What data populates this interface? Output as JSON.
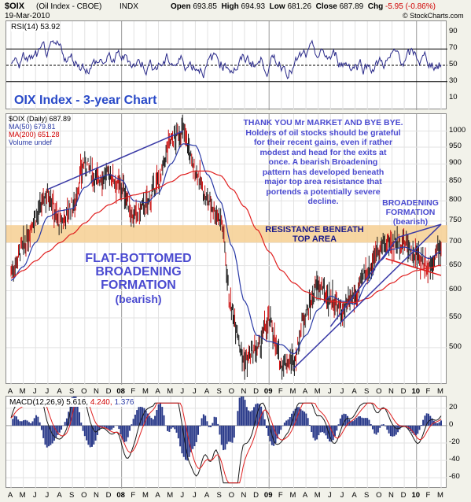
{
  "header": {
    "symbol": "$OIX",
    "name": "(Oil Index - CBOE)",
    "exchange": "INDX",
    "date": "19-Mar-2010",
    "open_label": "Open",
    "open": "693.85",
    "high_label": "High",
    "high": "694.93",
    "low_label": "Low",
    "low": "681.26",
    "close_label": "Close",
    "close": "687.89",
    "chg_label": "Chg",
    "chg": "-5.95 (-0.86%)",
    "watermark": "© StockCharts.com"
  },
  "rsi_panel": {
    "label": "RSI(14) 53.92",
    "ticks": [
      "90",
      "70",
      "50",
      "30",
      "10"
    ]
  },
  "price_panel": {
    "title": "OIX Index - 3-year Chart",
    "legend": [
      "$OIX (Daily) 687.89",
      "MA(50) 679.81",
      "MA(200) 651.28",
      "Volume undef"
    ],
    "ticks": [
      "1000",
      "950",
      "900",
      "850",
      "800",
      "750",
      "700",
      "650",
      "600",
      "550",
      "500"
    ]
  },
  "macd_panel": {
    "label_main": "MACD(12,26,9) 5.616,",
    "label_signal": "4.240,",
    "label_hist": "1.376",
    "ticks": [
      "20",
      "0",
      "-20",
      "-40",
      "-60"
    ]
  },
  "annotations": {
    "comment": "THANK YOU Mr MARKET AND BYE BYE.\nHolders of oil stocks should be grateful\nfor their recent gains, even if rather\nmodest and head for the exits at\nonce. A bearish Broadening\npattern has developed beneath\nmajor top area resistance that\nportends a potentially severe\ndecline.",
    "broadening_right": "BROADENING\nFORMATION\n(bearish)",
    "resistance": "RESISTANCE BENEATH\nTOP AREA",
    "flat_bottom": "FLAT-BOTTOMED\nBROADENING\nFORMATION",
    "flat_bottom_sub": "(bearish)"
  },
  "colors": {
    "price": "#000000",
    "ma50": "#2a3aa6",
    "ma200": "#e02020",
    "trendline": "#3a3aa6",
    "resistance_band": "#f6cf92",
    "annotation_text": "#4444cc",
    "bull_bar": "#1a1a1a",
    "bear_bar": "#cc1010"
  },
  "chart_data": {
    "type": "line",
    "title": "OIX Index - 3-year Chart",
    "x_labels": [
      "A",
      "M",
      "J",
      "J",
      "A",
      "S",
      "O",
      "N",
      "D",
      "08",
      "F",
      "M",
      "A",
      "M",
      "J",
      "J",
      "A",
      "S",
      "O",
      "N",
      "D",
      "09",
      "F",
      "M",
      "A",
      "M",
      "J",
      "J",
      "A",
      "S",
      "O",
      "N",
      "D",
      "10",
      "F",
      "M"
    ],
    "price": {
      "ylim": [
        460,
        1040
      ],
      "log_scale": true,
      "series": [
        {
          "name": "$OIX (Daily)",
          "x": [
            0,
            1,
            2,
            3,
            4,
            5,
            6,
            7,
            8,
            9,
            10,
            11,
            12,
            13,
            14,
            15,
            16,
            17,
            18,
            19,
            20,
            21,
            22,
            23,
            24,
            25,
            26,
            27,
            28,
            29,
            30,
            31,
            32,
            33,
            34,
            35
          ],
          "values": [
            640,
            690,
            760,
            820,
            745,
            785,
            900,
            860,
            870,
            835,
            760,
            790,
            850,
            970,
            1000,
            880,
            800,
            760,
            560,
            480,
            495,
            545,
            475,
            480,
            560,
            610,
            585,
            560,
            590,
            640,
            690,
            700,
            700,
            670,
            650,
            690
          ]
        },
        {
          "name": "MA(50)",
          "x": [
            0,
            1,
            2,
            3,
            4,
            5,
            6,
            7,
            8,
            9,
            10,
            11,
            12,
            13,
            14,
            15,
            16,
            17,
            18,
            19,
            20,
            21,
            22,
            23,
            24,
            25,
            26,
            27,
            28,
            29,
            30,
            31,
            32,
            33,
            34,
            35
          ],
          "values": [
            620,
            648,
            700,
            760,
            775,
            780,
            835,
            860,
            870,
            855,
            800,
            795,
            820,
            900,
            960,
            955,
            870,
            800,
            690,
            580,
            520,
            510,
            505,
            490,
            520,
            565,
            590,
            580,
            575,
            615,
            660,
            685,
            690,
            680,
            665,
            680
          ]
        },
        {
          "name": "MA(200)",
          "x": [
            0,
            1,
            2,
            3,
            4,
            5,
            6,
            7,
            8,
            9,
            10,
            11,
            12,
            13,
            14,
            15,
            16,
            17,
            18,
            19,
            20,
            21,
            22,
            23,
            24,
            25,
            26,
            27,
            28,
            29,
            30,
            31,
            32,
            33,
            34,
            35
          ],
          "values": [
            625,
            640,
            660,
            680,
            700,
            720,
            745,
            770,
            790,
            805,
            815,
            822,
            835,
            850,
            870,
            880,
            880,
            868,
            830,
            785,
            730,
            680,
            640,
            615,
            598,
            585,
            580,
            578,
            578,
            585,
            600,
            615,
            630,
            640,
            645,
            651
          ]
        }
      ],
      "resistance_band": [
        700,
        740
      ]
    },
    "rsi": {
      "ylim": [
        0,
        100
      ],
      "reference_lines": [
        70,
        50,
        30
      ],
      "label": "RSI(14) 53.92"
    },
    "macd": {
      "ylim": [
        -68,
        28
      ],
      "label": "MACD(12,26,9) 5.616, 4.240, 1.376"
    }
  }
}
